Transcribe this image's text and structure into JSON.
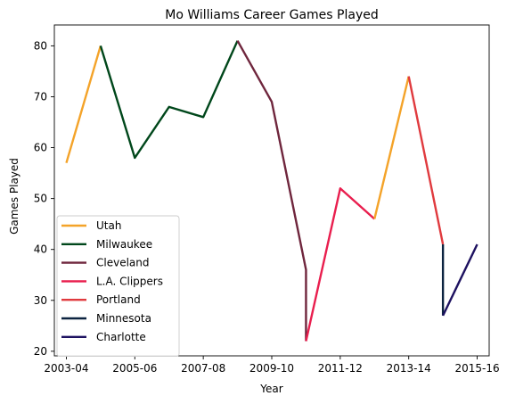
{
  "chart_data": {
    "type": "line",
    "title": "Mo Williams Career Games Played",
    "xlabel": "Year",
    "ylabel": "Games Played",
    "x_tick_labels": [
      "2003-04",
      "2005-06",
      "2007-08",
      "2009-10",
      "2011-12",
      "2013-14",
      "2015-16"
    ],
    "x_tick_positions": [
      2003,
      2005,
      2007,
      2009,
      2011,
      2013,
      2015
    ],
    "xlim": [
      2002.65,
      2015.35
    ],
    "ylim": [
      19.1,
      84.1
    ],
    "y_ticks": [
      20,
      30,
      40,
      50,
      60,
      70,
      80
    ],
    "grid": false,
    "legend_position": "lower left",
    "series": [
      {
        "name": "Utah",
        "color": "#F4A329",
        "points": [
          [
            2003,
            57
          ],
          [
            2004,
            80
          ]
        ]
      },
      {
        "name": "Milwaukee",
        "color": "#00471B",
        "points": [
          [
            2004,
            80
          ],
          [
            2005,
            58
          ],
          [
            2006,
            68
          ],
          [
            2007,
            66
          ],
          [
            2008,
            81
          ]
        ]
      },
      {
        "name": "Cleveland",
        "color": "#6F263D",
        "points": [
          [
            2008,
            81
          ],
          [
            2009,
            69
          ],
          [
            2010,
            36
          ],
          [
            2010,
            22
          ]
        ]
      },
      {
        "name": "L.A. Clippers",
        "color": "#E91E4E",
        "points": [
          [
            2010,
            22
          ],
          [
            2011,
            52
          ],
          [
            2012,
            46
          ]
        ]
      },
      {
        "name": "Utah",
        "color": "#F4A329",
        "points": [
          [
            2012,
            46
          ],
          [
            2013,
            74
          ]
        ]
      },
      {
        "name": "Portland",
        "color": "#E03A3E",
        "points": [
          [
            2013,
            74
          ],
          [
            2014,
            41
          ]
        ]
      },
      {
        "name": "Minnesota",
        "color": "#0C2340",
        "points": [
          [
            2014,
            41
          ],
          [
            2014,
            27
          ]
        ]
      },
      {
        "name": "Charlotte",
        "color": "#1D1160",
        "points": [
          [
            2014,
            27
          ],
          [
            2015,
            41
          ]
        ]
      }
    ],
    "legend": [
      {
        "label": "Utah",
        "color": "#F4A329"
      },
      {
        "label": "Milwaukee",
        "color": "#00471B"
      },
      {
        "label": "Cleveland",
        "color": "#6F263D"
      },
      {
        "label": "L.A. Clippers",
        "color": "#E91E4E"
      },
      {
        "label": "Portland",
        "color": "#E03A3E"
      },
      {
        "label": "Minnesota",
        "color": "#0C2340"
      },
      {
        "label": "Charlotte",
        "color": "#1D1160"
      }
    ]
  }
}
